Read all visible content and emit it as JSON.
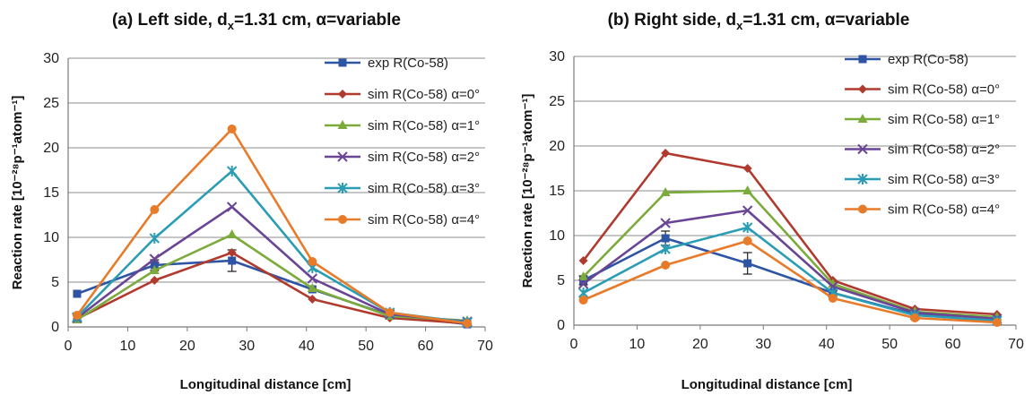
{
  "chart_data": [
    {
      "type": "line",
      "title_prefix": "(a) Left side, d",
      "title_sub": "x",
      "title_suffix": "=1.31 cm, α=variable",
      "xlabel": "Longitudinal distance [cm]",
      "ylabel": "Reaction rate [10⁻²⁸p⁻¹atom⁻¹]",
      "xlim": [
        0,
        70
      ],
      "ylim": [
        0,
        30
      ],
      "xticks": [
        "0",
        "10",
        "20",
        "30",
        "40",
        "50",
        "60",
        "70"
      ],
      "yticks": [
        "0",
        "5",
        "10",
        "15",
        "20",
        "25",
        "30"
      ],
      "grid": "horizontal",
      "legend_position": "right",
      "series": [
        {
          "name": "exp R(Co-58)",
          "color": "#2e55a3",
          "marker": "square",
          "x": [
            1.5,
            14.5,
            27.5,
            41,
            54,
            67
          ],
          "y": [
            3.7,
            6.9,
            7.4,
            4.2,
            1.3,
            0.3
          ],
          "err": [
            0,
            0.6,
            1.2,
            0,
            0,
            0
          ]
        },
        {
          "name": "sim R(Co-58) α=0°",
          "color": "#b03a2e",
          "marker": "diamond",
          "x": [
            1.5,
            14.5,
            27.5,
            41,
            54,
            67
          ],
          "y": [
            0.9,
            5.2,
            8.3,
            3.1,
            1.0,
            0.4
          ]
        },
        {
          "name": "sim R(Co-58) α=1°",
          "color": "#7cab3c",
          "marker": "triangle",
          "x": [
            1.5,
            14.5,
            27.5,
            41,
            54,
            67
          ],
          "y": [
            0.8,
            6.3,
            10.3,
            4.3,
            1.2,
            0.7
          ]
        },
        {
          "name": "sim R(Co-58) α=2°",
          "color": "#6a4595",
          "marker": "x",
          "x": [
            1.5,
            14.5,
            27.5,
            41,
            54,
            67
          ],
          "y": [
            1.0,
            7.6,
            13.4,
            5.4,
            1.4,
            0.6
          ]
        },
        {
          "name": "sim R(Co-58) α=3°",
          "color": "#2a9db5",
          "marker": "star",
          "x": [
            1.5,
            14.5,
            27.5,
            41,
            54,
            67
          ],
          "y": [
            1.1,
            9.9,
            17.4,
            6.6,
            1.6,
            0.5
          ]
        },
        {
          "name": "sim R(Co-58) α=4°",
          "color": "#e87b2a",
          "marker": "circle",
          "x": [
            1.5,
            14.5,
            27.5,
            41,
            54,
            67
          ],
          "y": [
            1.3,
            13.1,
            22.1,
            7.3,
            1.6,
            0.4
          ]
        }
      ]
    },
    {
      "type": "line",
      "title_prefix": "(b) Right side, d",
      "title_sub": "x",
      "title_suffix": "=1.31 cm, α=variable",
      "xlabel": "Longitudinal distance [cm]",
      "ylabel": "Reaction rate [10⁻²⁸p⁻¹atom⁻¹]",
      "xlim": [
        0,
        70
      ],
      "ylim": [
        0,
        30
      ],
      "xticks": [
        "0",
        "10",
        "20",
        "30",
        "40",
        "50",
        "60",
        "70"
      ],
      "yticks": [
        "0",
        "5",
        "10",
        "15",
        "20",
        "25",
        "30"
      ],
      "grid": "horizontal",
      "legend_position": "right",
      "series": [
        {
          "name": "exp R(Co-58)",
          "color": "#2e55a3",
          "marker": "square",
          "x": [
            1.5,
            14.5,
            27.5,
            41,
            54,
            67
          ],
          "y": [
            5.0,
            9.7,
            6.9,
            3.6,
            1.2,
            0.4
          ],
          "err": [
            0.5,
            0.8,
            1.2,
            0,
            0,
            0
          ]
        },
        {
          "name": "sim R(Co-58) α=0°",
          "color": "#b03a2e",
          "marker": "diamond",
          "x": [
            1.5,
            14.5,
            27.5,
            41,
            54,
            67
          ],
          "y": [
            7.2,
            19.2,
            17.5,
            5.0,
            1.8,
            1.2
          ]
        },
        {
          "name": "sim R(Co-58) α=1°",
          "color": "#7cab3c",
          "marker": "triangle",
          "x": [
            1.5,
            14.5,
            27.5,
            41,
            54,
            67
          ],
          "y": [
            5.4,
            14.8,
            15.0,
            4.6,
            1.5,
            0.9
          ]
        },
        {
          "name": "sim R(Co-58) α=2°",
          "color": "#6a4595",
          "marker": "x",
          "x": [
            1.5,
            14.5,
            27.5,
            41,
            54,
            67
          ],
          "y": [
            4.6,
            11.4,
            12.8,
            4.3,
            1.4,
            0.7
          ]
        },
        {
          "name": "sim R(Co-58) α=3°",
          "color": "#2a9db5",
          "marker": "star",
          "x": [
            1.5,
            14.5,
            27.5,
            41,
            54,
            67
          ],
          "y": [
            3.6,
            8.5,
            10.9,
            3.6,
            1.1,
            0.5
          ]
        },
        {
          "name": "sim R(Co-58) α=4°",
          "color": "#e87b2a",
          "marker": "circle",
          "x": [
            1.5,
            14.5,
            27.5,
            41,
            54,
            67
          ],
          "y": [
            2.8,
            6.7,
            9.4,
            3.0,
            0.8,
            0.3
          ]
        }
      ]
    }
  ]
}
